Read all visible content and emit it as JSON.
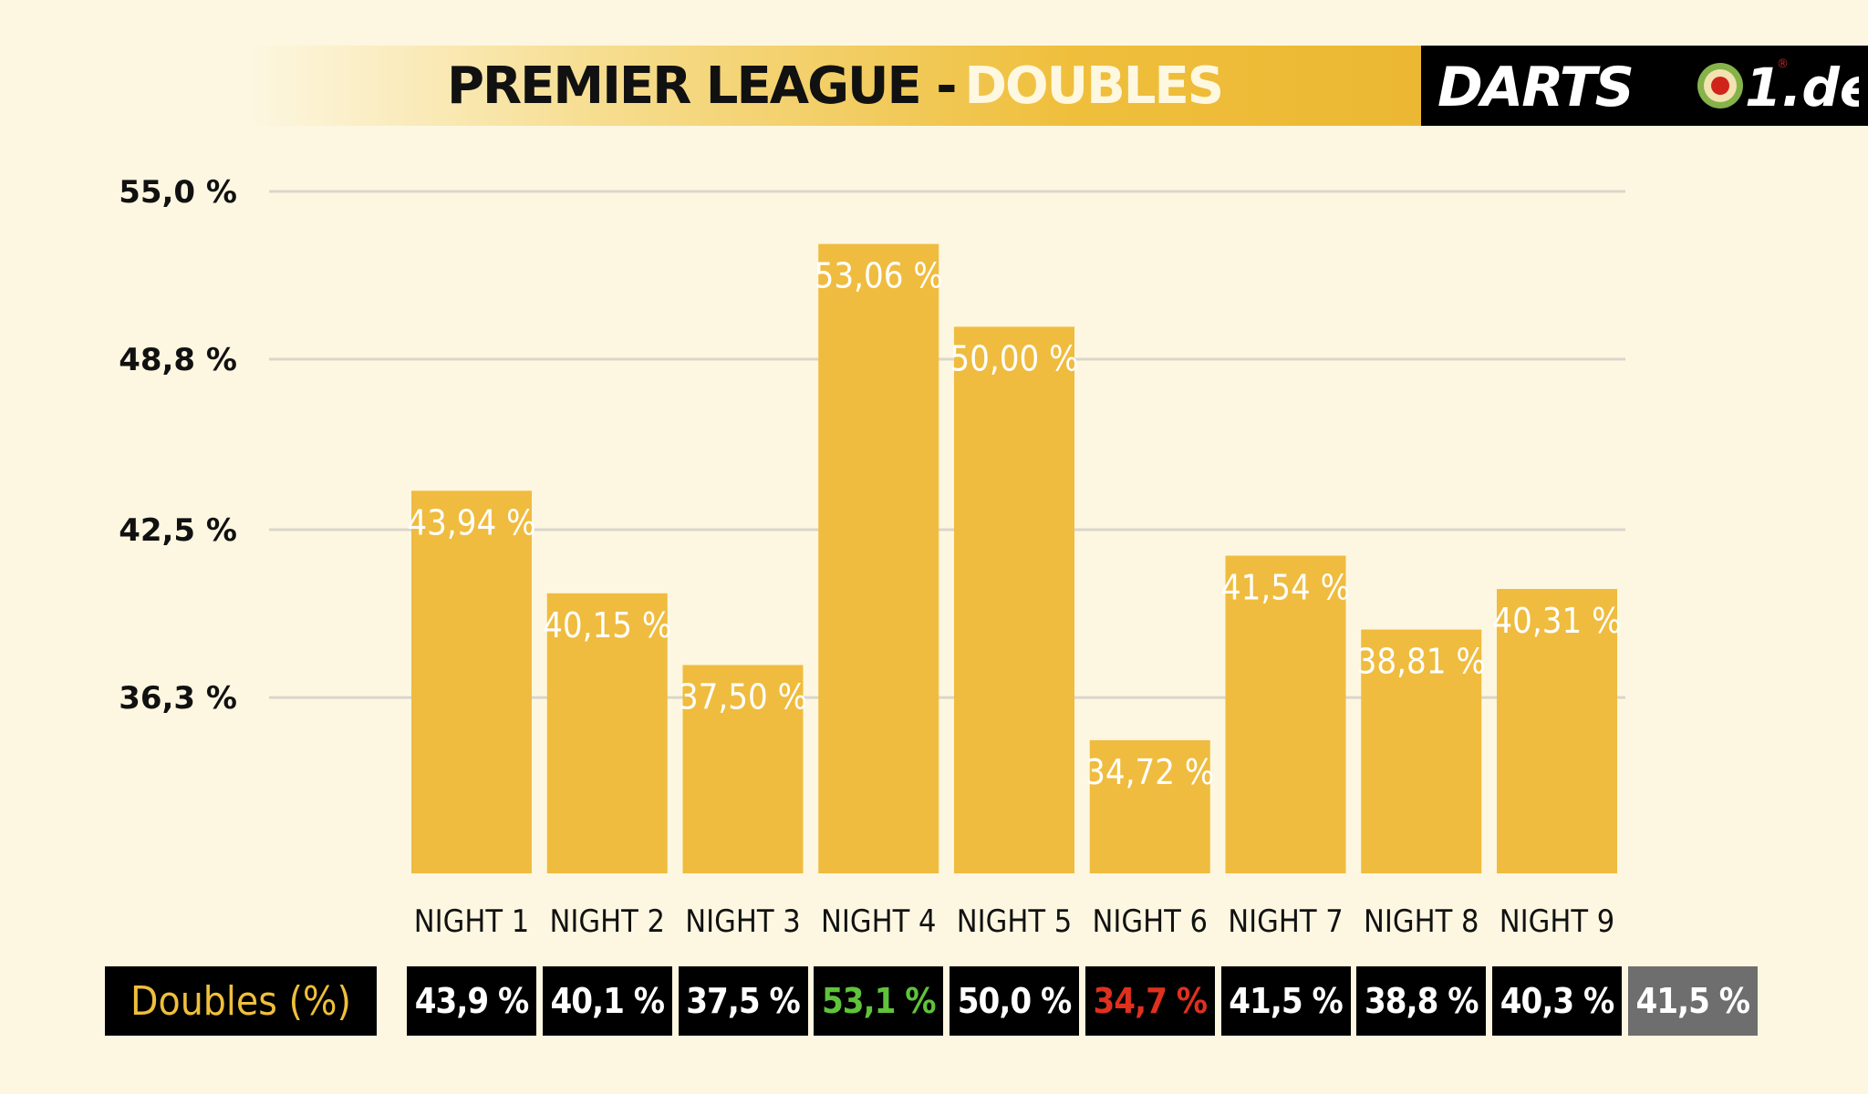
{
  "title": {
    "main": "PREMIER LEAGUE -",
    "accent": "DOUBLES"
  },
  "logo": {
    "text": "DARTS",
    "suffix": "1.de",
    "registered": "®"
  },
  "colors": {
    "bar": "#efbc3f",
    "background": "#fdf7e1",
    "grid": "#d9d6cc",
    "best": "#5fc33b",
    "worst": "#e0301e",
    "average_cell": "#6e6e6e"
  },
  "chart_data": {
    "type": "bar",
    "categories": [
      "NIGHT 1",
      "NIGHT 2",
      "NIGHT 3",
      "NIGHT 4",
      "NIGHT 5",
      "NIGHT 6",
      "NIGHT 7",
      "NIGHT 8",
      "NIGHT 9"
    ],
    "values": [
      43.94,
      40.15,
      37.5,
      53.06,
      50.0,
      34.72,
      41.54,
      38.81,
      40.31
    ],
    "value_labels": [
      "43,94 %",
      "40,15 %",
      "37,50 %",
      "53,06 %",
      "50,00 %",
      "34,72 %",
      "41,54 %",
      "38,81 %",
      "40,31 %"
    ],
    "yticks": [
      36.3,
      42.5,
      48.8,
      55.0
    ],
    "ytick_labels": [
      "36,3 %",
      "42,5 %",
      "48,8 %",
      "55,0 %"
    ],
    "ylim": [
      29.8,
      55.0
    ],
    "grid": true,
    "legend": "none"
  },
  "stats_row": {
    "label": "Doubles (%)",
    "values": [
      "43,9 %",
      "40,1 %",
      "37,5 %",
      "53,1 %",
      "50,0 %",
      "34,7 %",
      "41,5 %",
      "38,8 %",
      "40,3 %"
    ],
    "average": "41,5 %"
  }
}
